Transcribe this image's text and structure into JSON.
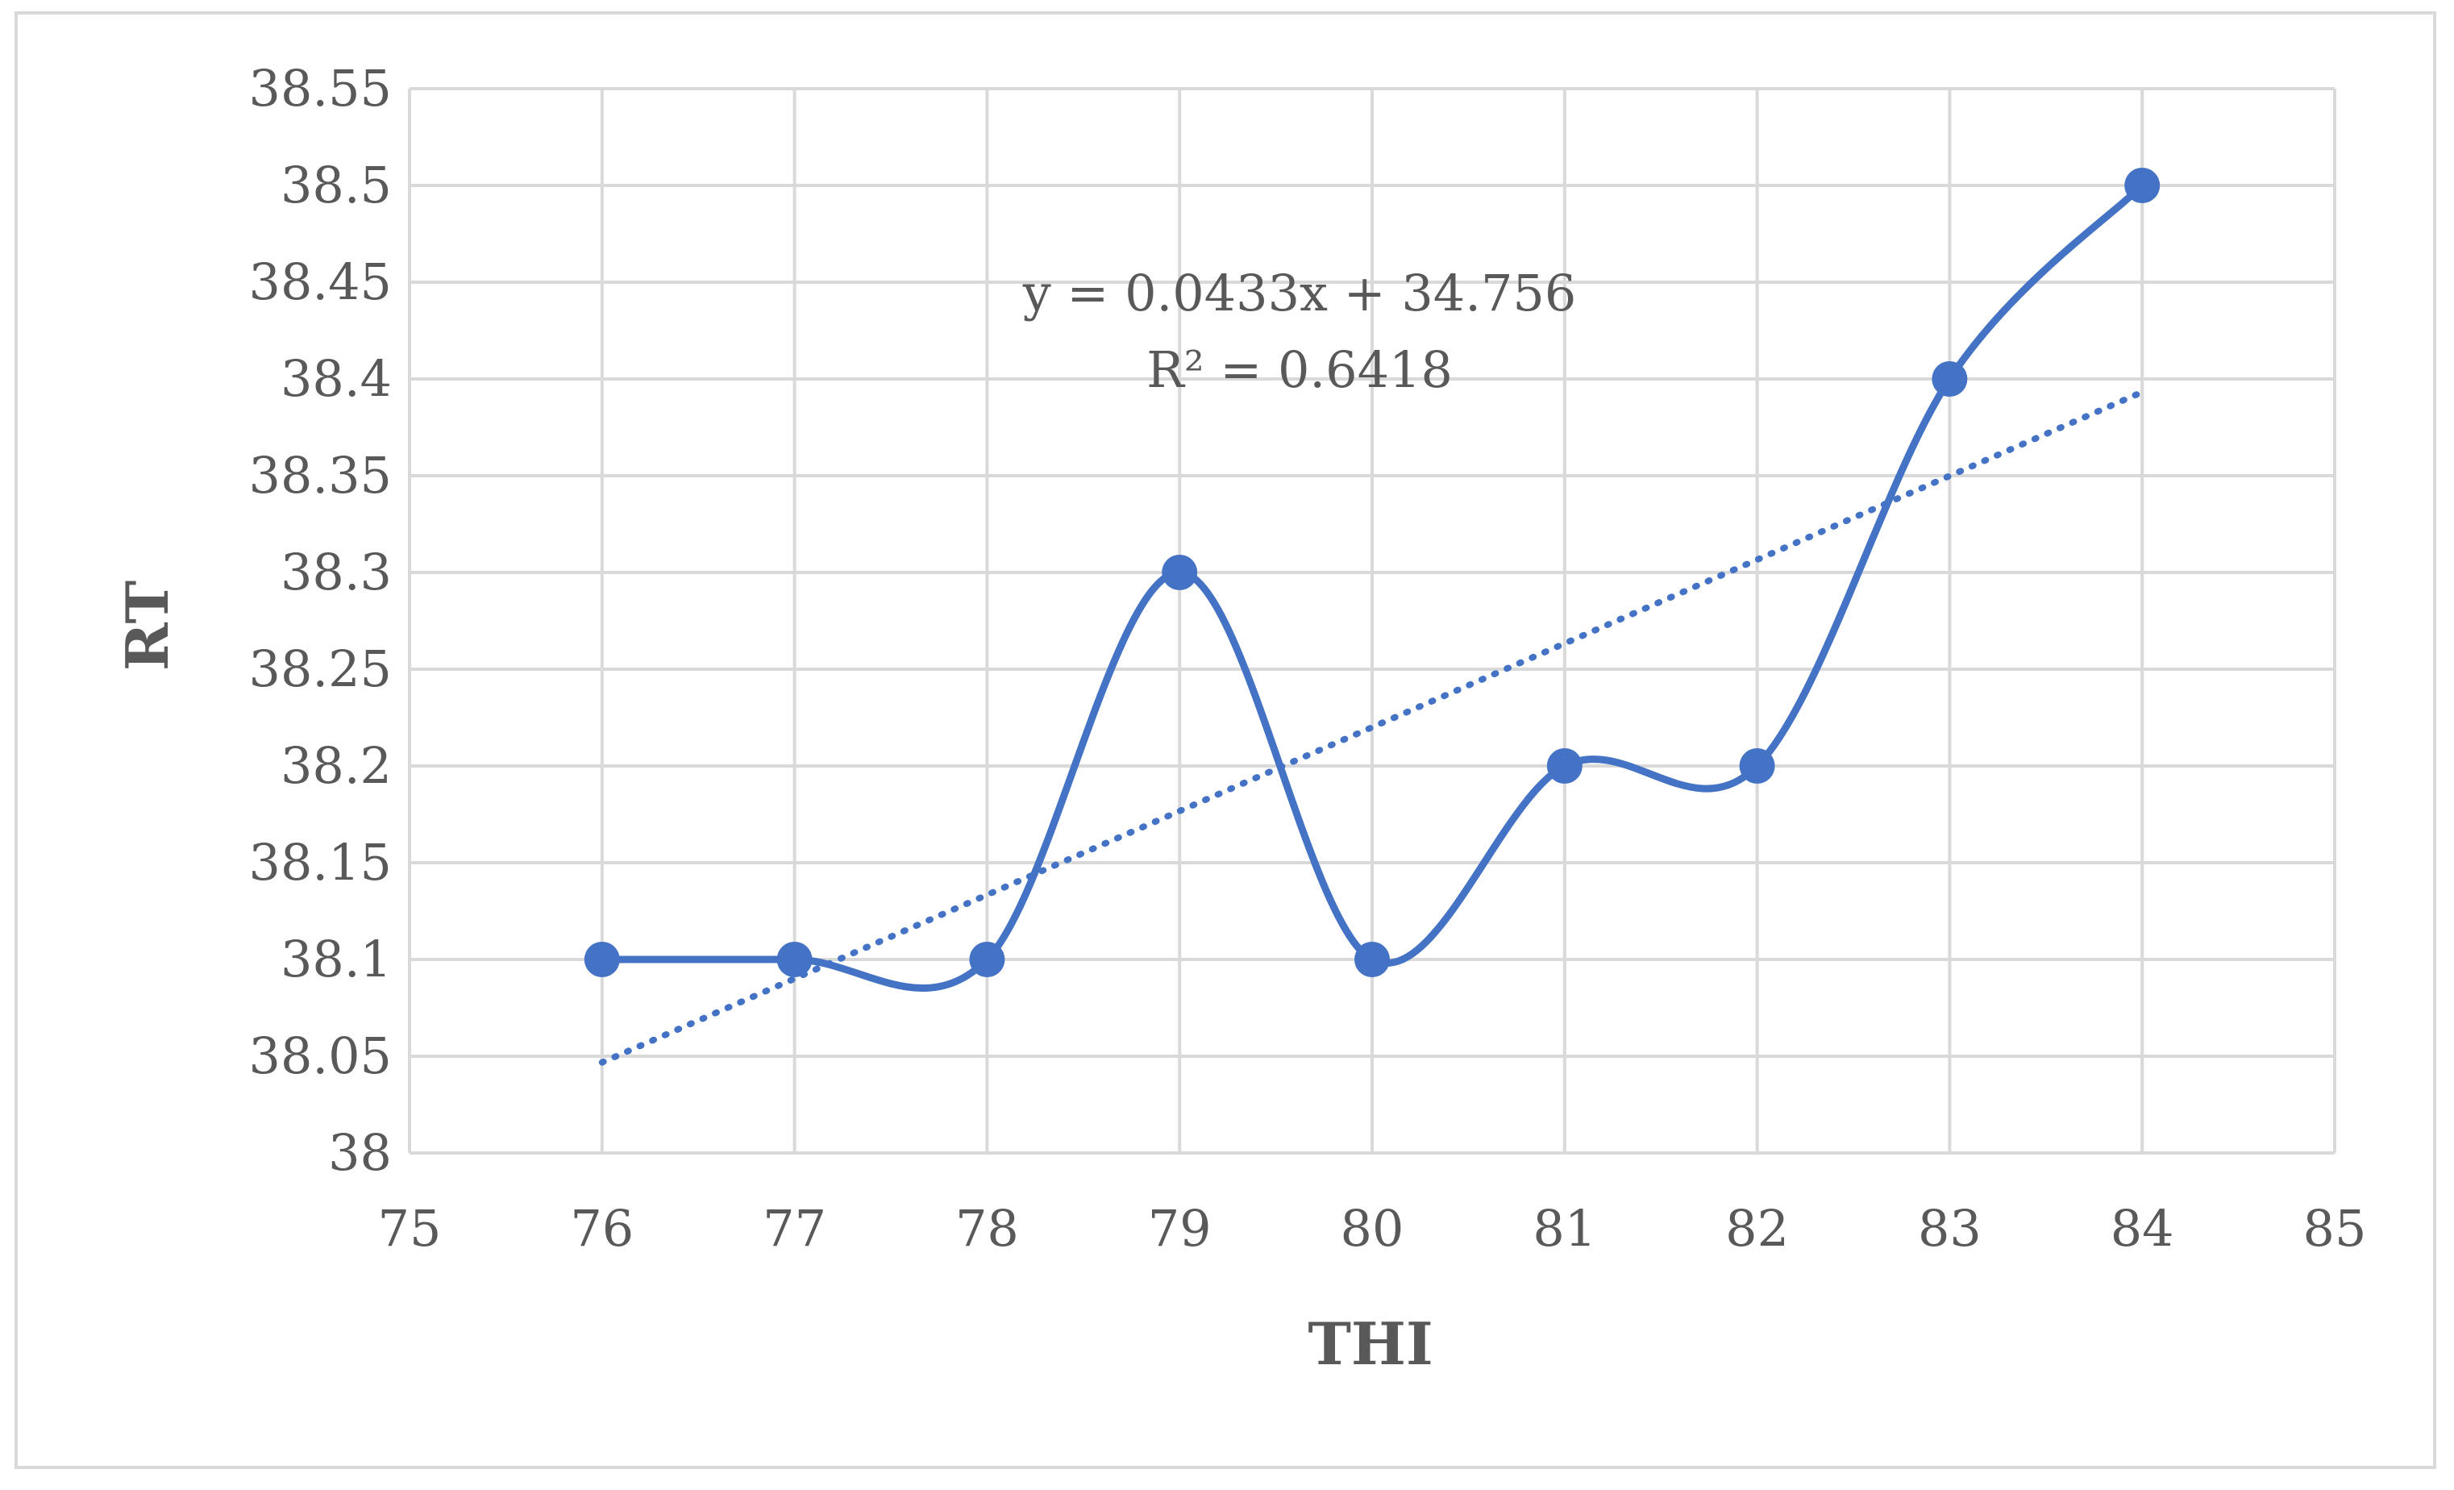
{
  "chart_data": {
    "type": "scatter",
    "title": "",
    "xlabel": "THI",
    "ylabel": "RT",
    "xlim": [
      75,
      85
    ],
    "ylim": [
      38,
      38.55
    ],
    "x_ticks": [
      "75",
      "76",
      "77",
      "78",
      "79",
      "80",
      "81",
      "82",
      "83",
      "84",
      "85"
    ],
    "y_ticks": [
      "38",
      "38.05",
      "38.1",
      "38.15",
      "38.2",
      "38.25",
      "38.3",
      "38.35",
      "38.4",
      "38.45",
      "38.5",
      "38.55"
    ],
    "grid": true,
    "series": [
      {
        "x": [
          76,
          77,
          78,
          79,
          80,
          81,
          82,
          83,
          84
        ],
        "y": [
          38.1,
          38.1,
          38.1,
          38.3,
          38.1,
          38.2,
          38.2,
          38.4,
          38.5
        ],
        "line": "smooth",
        "markers": true,
        "color": "#4472c4"
      }
    ],
    "trendline": {
      "type": "linear",
      "slope": 0.0433,
      "intercept": 34.756,
      "x_range": [
        76,
        84
      ],
      "style": "dotted",
      "color": "#4472c4"
    },
    "annotations": {
      "equation": "y = 0.0433x + 34.756",
      "r_squared": "R² = 0.6418"
    }
  }
}
